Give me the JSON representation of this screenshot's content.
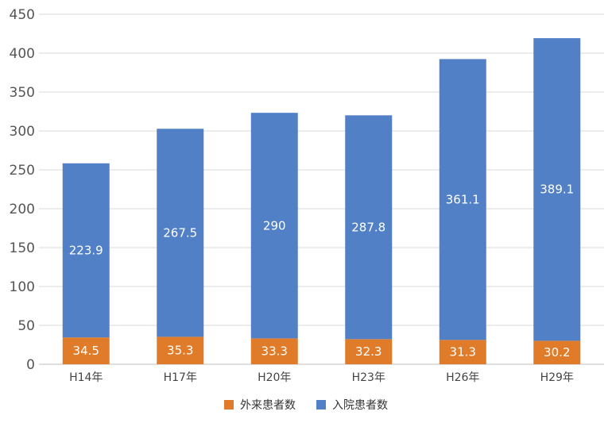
{
  "chart_data": {
    "type": "bar",
    "stacked": true,
    "categories": [
      "H14年",
      "H17年",
      "H20年",
      "H23年",
      "H26年",
      "H29年"
    ],
    "series": [
      {
        "name": "外来患者数",
        "values": [
          34.5,
          35.3,
          33.3,
          32.3,
          31.3,
          30.2
        ],
        "color": "#E07B2A"
      },
      {
        "name": "入院患者数",
        "values": [
          223.9,
          267.5,
          290,
          287.8,
          361.1,
          389.1
        ],
        "color": "#5180C6"
      }
    ],
    "data_labels": [
      [
        "34.5",
        "35.3",
        "33.3",
        "32.3",
        "31.3",
        "30.2"
      ],
      [
        "223.9",
        "267.5",
        "290",
        "287.8",
        "361.1",
        "389.1"
      ]
    ],
    "yticks": [
      "0",
      "50",
      "100",
      "150",
      "200",
      "250",
      "300",
      "350",
      "400",
      "450"
    ],
    "ylim": [
      0,
      450
    ],
    "grid": true,
    "legend_position": "bottom"
  }
}
